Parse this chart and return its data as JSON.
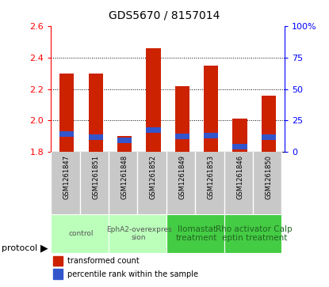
{
  "title": "GDS5670 / 8157014",
  "samples": [
    "GSM1261847",
    "GSM1261851",
    "GSM1261848",
    "GSM1261852",
    "GSM1261849",
    "GSM1261853",
    "GSM1261846",
    "GSM1261850"
  ],
  "transformed_count": [
    2.3,
    2.3,
    1.9,
    2.46,
    2.22,
    2.35,
    2.01,
    2.16
  ],
  "blue_bar_bottom": [
    1.895,
    1.878,
    1.858,
    1.922,
    1.882,
    1.888,
    1.818,
    1.875
  ],
  "blue_bar_height": 0.035,
  "bar_bottom": 1.8,
  "ylim": [
    1.8,
    2.6
  ],
  "y2lim": [
    0,
    100
  ],
  "y_ticks": [
    1.8,
    2.0,
    2.2,
    2.4,
    2.6
  ],
  "y2_ticks": [
    0,
    25,
    50,
    75,
    100
  ],
  "y2_tick_labels": [
    "0",
    "25",
    "50",
    "75",
    "100%"
  ],
  "grid_lines": [
    2.0,
    2.2,
    2.4
  ],
  "bar_color": "#cc2200",
  "blue_color": "#3355cc",
  "bg_color": "#c8c8c8",
  "protocols": [
    {
      "label": "control",
      "start": 0,
      "end": 2,
      "color": "#bbffbb"
    },
    {
      "label": "EphA2-overexpres\nsion",
      "start": 2,
      "end": 4,
      "color": "#bbffbb"
    },
    {
      "label": "llomastat\ntreatment",
      "start": 4,
      "end": 6,
      "color": "#44cc44"
    },
    {
      "label": "Rho activator Calp\neptin treatment",
      "start": 6,
      "end": 8,
      "color": "#44cc44"
    }
  ],
  "protocol_label": "protocol",
  "legend_items": [
    {
      "label": "transformed count",
      "color": "#cc2200"
    },
    {
      "label": "percentile rank within the sample",
      "color": "#3355cc"
    }
  ],
  "bar_width": 0.5,
  "n_samples": 8
}
